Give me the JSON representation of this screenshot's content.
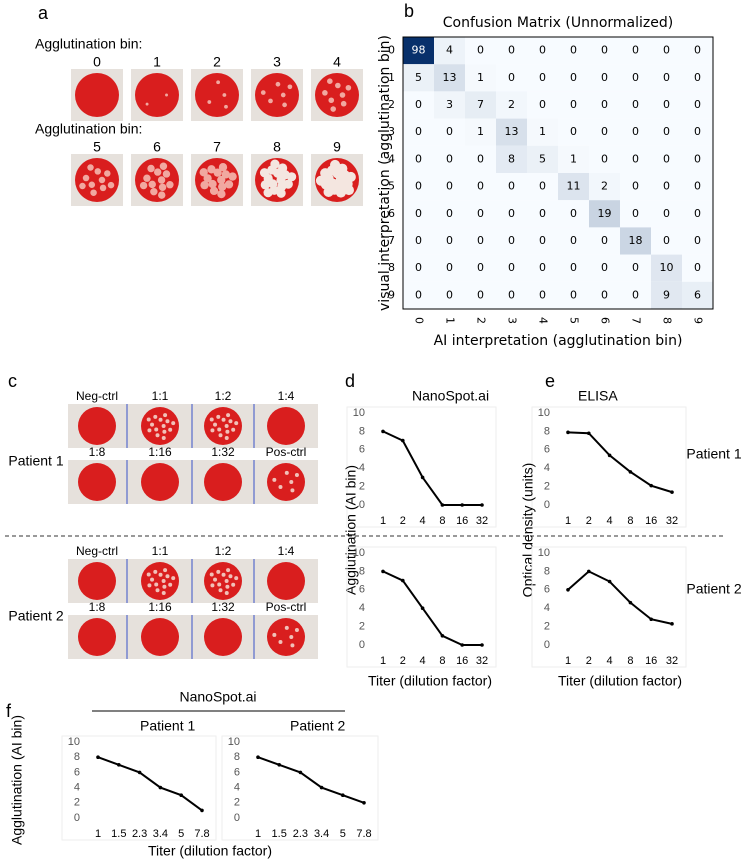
{
  "panel_labels": [
    "a",
    "b",
    "c",
    "d",
    "e",
    "f"
  ],
  "panel_a": {
    "rows": [
      {
        "title": "Agglutination bin:",
        "bins": [
          "0",
          "1",
          "2",
          "3",
          "4"
        ]
      },
      {
        "title": "Agglutination bin:",
        "bins": [
          "5",
          "6",
          "7",
          "8",
          "9"
        ]
      }
    ]
  },
  "panel_c": {
    "patients": [
      {
        "name": "Patient 1",
        "rows": [
          [
            "Neg-ctrl",
            "1:1",
            "1:2",
            "1:4"
          ],
          [
            "1:8",
            "1:16",
            "1:32",
            "Pos-ctrl"
          ]
        ]
      },
      {
        "name": "Patient 2",
        "rows": [
          [
            "Neg-ctrl",
            "1:1",
            "1:2",
            "1:4"
          ],
          [
            "1:8",
            "1:16",
            "1:32",
            "Pos-ctrl"
          ]
        ]
      }
    ]
  },
  "panel_f": {
    "title": "NanoSpot.ai"
  },
  "chart_data": [
    {
      "type": "heatmap",
      "title": "Confusion Matrix (Unnormalized)",
      "x_label": "AI interpretation (agglutination bin)",
      "y_label": "visual interpretation (agglutination bin)",
      "x_categories": [
        "0",
        "1",
        "2",
        "3",
        "4",
        "5",
        "6",
        "7",
        "8",
        "9"
      ],
      "y_categories": [
        "0",
        "1",
        "2",
        "3",
        "4",
        "5",
        "6",
        "7",
        "8",
        "9"
      ],
      "colormap": "Blues",
      "values": [
        [
          98,
          4,
          0,
          0,
          0,
          0,
          0,
          0,
          0,
          0
        ],
        [
          5,
          13,
          1,
          0,
          0,
          0,
          0,
          0,
          0,
          0
        ],
        [
          0,
          3,
          7,
          2,
          0,
          0,
          0,
          0,
          0,
          0
        ],
        [
          0,
          0,
          1,
          13,
          1,
          0,
          0,
          0,
          0,
          0
        ],
        [
          0,
          0,
          0,
          8,
          5,
          1,
          0,
          0,
          0,
          0
        ],
        [
          0,
          0,
          0,
          0,
          0,
          11,
          2,
          0,
          0,
          0
        ],
        [
          0,
          0,
          0,
          0,
          0,
          0,
          19,
          0,
          0,
          0
        ],
        [
          0,
          0,
          0,
          0,
          0,
          0,
          0,
          18,
          0,
          0
        ],
        [
          0,
          0,
          0,
          0,
          0,
          0,
          0,
          0,
          10,
          0
        ],
        [
          0,
          0,
          0,
          0,
          0,
          0,
          0,
          0,
          9,
          6
        ]
      ]
    },
    {
      "type": "line",
      "title": "NanoSpot.ai",
      "y_label": "Agglutination (AI bin)",
      "categories": [
        "1",
        "2",
        "4",
        "8",
        "16",
        "32"
      ],
      "values": [
        8,
        7,
        3,
        0,
        0,
        0
      ],
      "color": "#000000",
      "ylim": [
        0,
        10
      ],
      "yticks": [
        0,
        2,
        4,
        6,
        8,
        10
      ]
    },
    {
      "type": "line",
      "x_label": "Titer (dilution factor)",
      "categories": [
        "1",
        "2",
        "4",
        "8",
        "16",
        "32"
      ],
      "values": [
        8,
        7,
        4,
        1,
        0,
        0
      ],
      "color": "#000000",
      "ylim": [
        0,
        10
      ],
      "yticks": [
        0,
        2,
        4,
        6,
        8,
        10
      ]
    },
    {
      "type": "line",
      "title": "ELISA",
      "y_label": "Optical density (units)",
      "annotation": "Patient 1",
      "categories": [
        "1",
        "2",
        "4",
        "8",
        "16",
        "32"
      ],
      "values": [
        7.9,
        7.8,
        5.4,
        3.6,
        2.1,
        1.4
      ],
      "color": "#000000",
      "ylim": [
        0,
        10
      ],
      "yticks": [
        0,
        2,
        4,
        6,
        8,
        10
      ]
    },
    {
      "type": "line",
      "x_label": "Titer (dilution factor)",
      "annotation": "Patient 2",
      "categories": [
        "1",
        "2",
        "4",
        "8",
        "16",
        "32"
      ],
      "values": [
        6,
        8,
        6.9,
        4.6,
        2.8,
        2.3
      ],
      "color": "#000000",
      "ylim": [
        0,
        10
      ],
      "yticks": [
        0,
        2,
        4,
        6,
        8,
        10
      ]
    },
    {
      "type": "line",
      "title": "Patient 1",
      "y_label": "Agglutination (AI bin)",
      "x_label": "Titer (dilution factor)",
      "categories": [
        "1",
        "1.5",
        "2.3",
        "3.4",
        "5",
        "7.8"
      ],
      "values": [
        8,
        7,
        6,
        4,
        3,
        1
      ],
      "color": "#000000",
      "ylim": [
        0,
        10
      ],
      "yticks": [
        0,
        2,
        4,
        6,
        8,
        10
      ]
    },
    {
      "type": "line",
      "title": "Patient 2",
      "categories": [
        "1",
        "1.5",
        "2.3",
        "3.4",
        "5",
        "7.8"
      ],
      "values": [
        8,
        7,
        6,
        4,
        3,
        2
      ],
      "color": "#000000",
      "ylim": [
        0,
        10
      ],
      "yticks": [
        0,
        2,
        4,
        6,
        8,
        10
      ]
    }
  ]
}
